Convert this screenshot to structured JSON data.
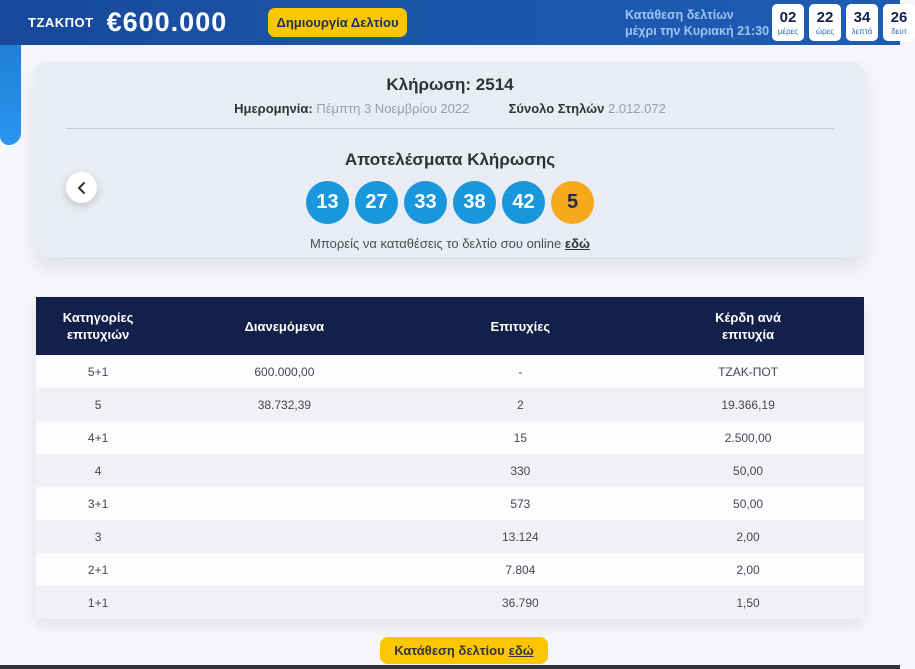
{
  "header": {
    "jackpot_label": "ΤΖΑΚΠΟΤ",
    "jackpot_amount": "€600.000",
    "create_button_label": "Δημιουργία Δελτίου",
    "deadline_line1": "Κατάθεση δελτίων",
    "deadline_line2": "μέχρι την Κυριακή 21:30",
    "countdown": [
      {
        "value": "02",
        "unit": "μέρες"
      },
      {
        "value": "22",
        "unit": "ώρες"
      },
      {
        "value": "34",
        "unit": "λεπτά"
      },
      {
        "value": "26",
        "unit": "δευτ"
      }
    ]
  },
  "draw": {
    "title": "Κλήρωση: 2514",
    "date_label": "Ημερομηνία:",
    "date_value": "Πέμπτη 3 Νοεμβρίου 2022",
    "columns_label": "Σύνολο Στηλών",
    "columns_value": "2.012.072",
    "results_title": "Αποτελέσματα Κλήρωσης",
    "numbers": [
      "13",
      "27",
      "33",
      "38",
      "42"
    ],
    "joker": "5",
    "caption_text": "Μπορείς να καταθέσεις το δελτίο σου online",
    "caption_link": "εδώ"
  },
  "table": {
    "headers": [
      "Κατηγορίες επιτυχιών",
      "Διανεμόμενα",
      "Επιτυχίες",
      "Κέρδη ανά επιτυχία"
    ],
    "rows": [
      [
        "5+1",
        "600.000,00",
        "-",
        "ΤΖΑΚ-ΠΟΤ"
      ],
      [
        "5",
        "38.732,39",
        "2",
        "19.366,19"
      ],
      [
        "4+1",
        "",
        "15",
        "2.500,00"
      ],
      [
        "4",
        "",
        "330",
        "50,00"
      ],
      [
        "3+1",
        "",
        "573",
        "50,00"
      ],
      [
        "3",
        "",
        "13.124",
        "2,00"
      ],
      [
        "2+1",
        "",
        "7.804",
        "2,00"
      ],
      [
        "1+1",
        "",
        "36.790",
        "1,50"
      ]
    ]
  },
  "footer": {
    "submit_text": "Κατάθεση δελτίου",
    "submit_link": "εδώ"
  },
  "colors": {
    "topbar_blue": "#1c55a8",
    "accent_yellow": "#fcc600",
    "ball_blue": "#1897dc",
    "ball_joker_orange": "#f7a81b",
    "table_header_navy": "#13204a",
    "deadline_light_blue": "#9cc6f2"
  }
}
